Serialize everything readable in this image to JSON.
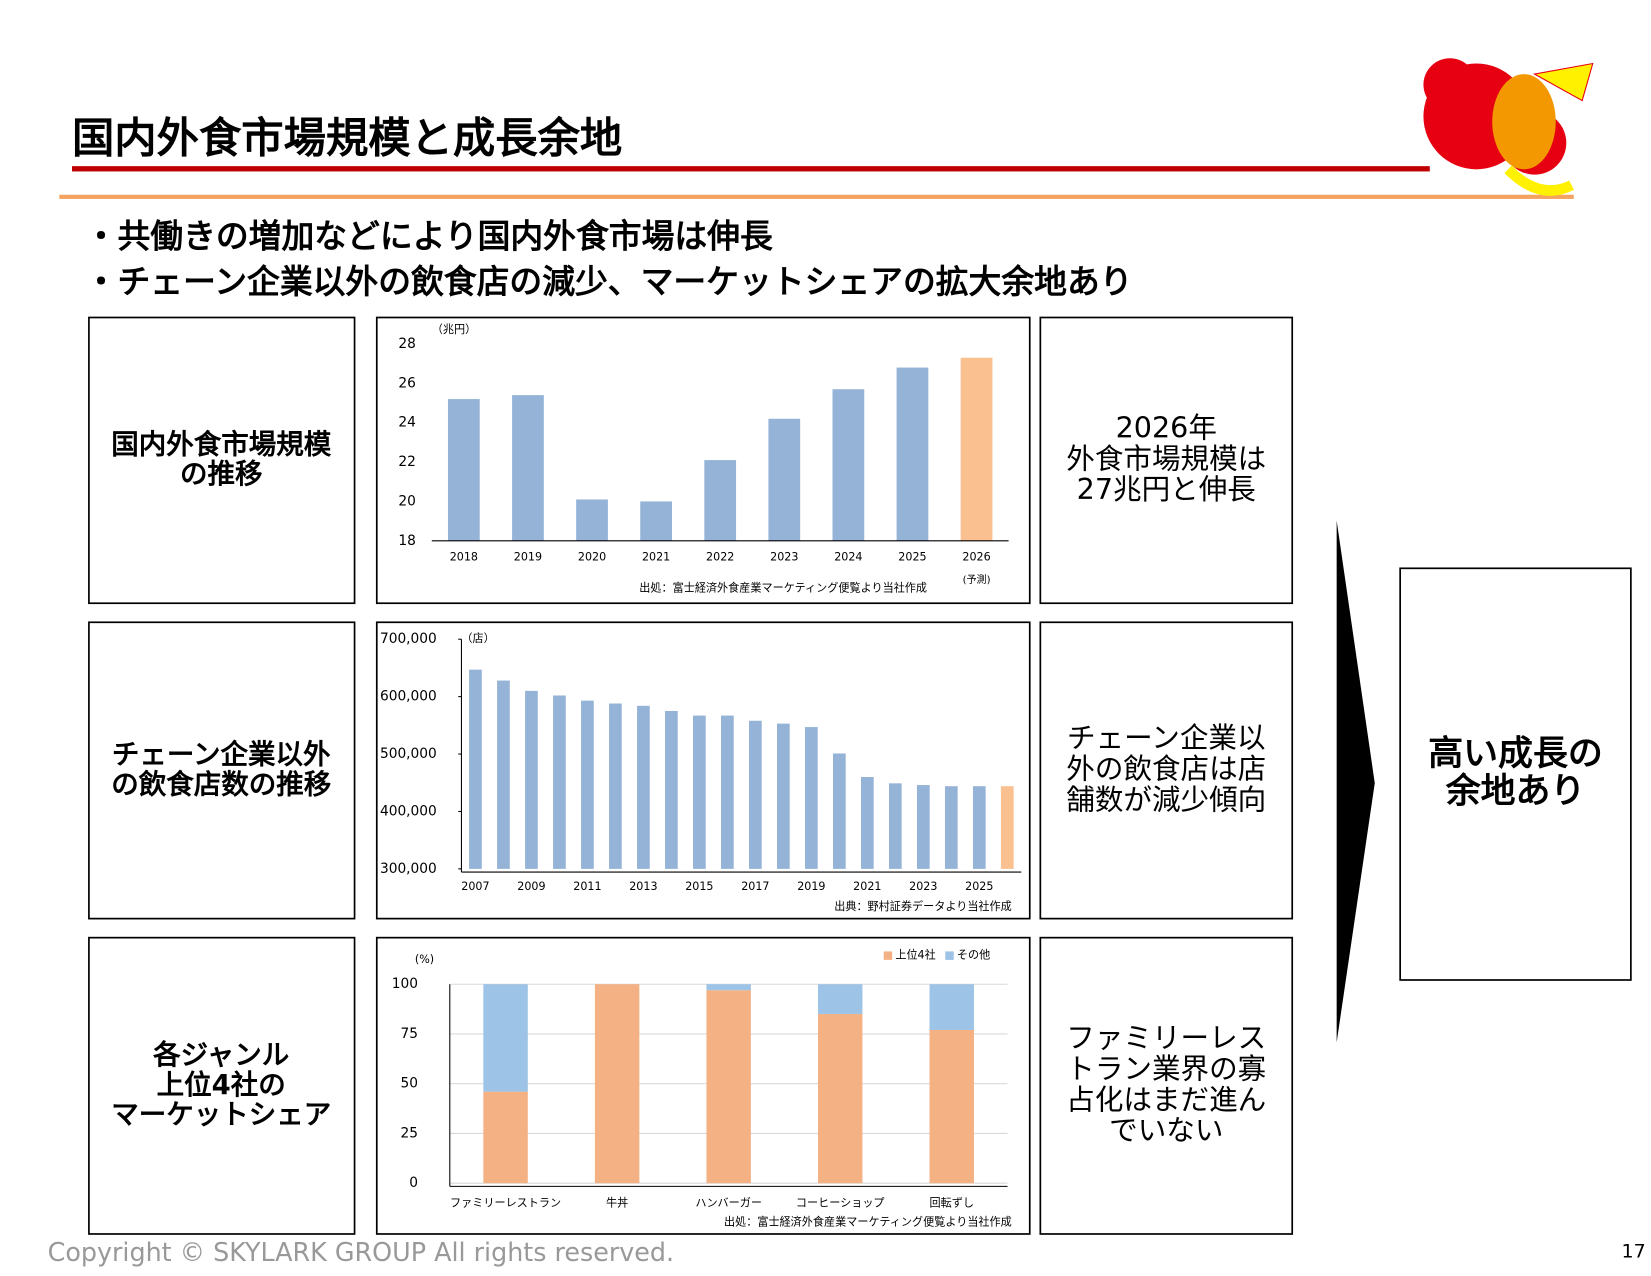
{
  "title": "国内外食市場規模と成長余地",
  "bullets": [
    "・共働きの増加などにより国内外食市場は伸長",
    "・チェーン企業以外の飲食店の減少、マーケットシェアの拡大余地あり"
  ],
  "rows": [
    {
      "label": [
        "国内外食市場規模",
        "の推移"
      ],
      "note": [
        "2026年",
        "外食市場規模は",
        "27兆円と伸長"
      ]
    },
    {
      "label": [
        "チェーン企業以外",
        "の飲食店数の推移"
      ],
      "note": [
        "チェーン企業以",
        "外の飲食店は店",
        "舗数が減少傾向"
      ]
    },
    {
      "label": [
        "各ジャンル",
        "上位4社の",
        "マーケットシェア"
      ],
      "note": [
        "ファミリーレス",
        "トラン業界の寡",
        "占化はまだ進ん",
        "でいない"
      ]
    }
  ],
  "chart_data": [
    {
      "type": "bar",
      "unit_label": "（兆円）",
      "categories": [
        "2018",
        "2019",
        "2020",
        "2021",
        "2022",
        "2023",
        "2024",
        "2025",
        "2026"
      ],
      "category_note": "(予測)",
      "values": [
        25.2,
        25.4,
        20.1,
        20.0,
        22.1,
        24.2,
        25.7,
        26.8,
        27.3
      ],
      "colors": [
        "#95b3d7",
        "#95b3d7",
        "#95b3d7",
        "#95b3d7",
        "#95b3d7",
        "#95b3d7",
        "#95b3d7",
        "#95b3d7",
        "#fac090"
      ],
      "ylim": [
        18,
        28
      ],
      "yticks": [
        18,
        20,
        22,
        24,
        26,
        28
      ],
      "grid": false,
      "source": "出処：富士経済外食産業マーケティング便覧より当社作成"
    },
    {
      "type": "bar",
      "unit_label": "（店）",
      "categories": [
        "2007",
        null,
        "2009",
        null,
        "2011",
        null,
        "2013",
        null,
        "2015",
        null,
        "2017",
        null,
        "2019",
        null,
        "2021",
        null,
        "2023",
        null,
        "2025",
        null
      ],
      "values": [
        647000,
        628000,
        610000,
        602000,
        593000,
        588000,
        584000,
        575000,
        567000,
        567000,
        558000,
        553000,
        547000,
        501000,
        460000,
        449000,
        446000,
        444000,
        444000,
        444000
      ],
      "colors": [
        "#95b3d7",
        "#95b3d7",
        "#95b3d7",
        "#95b3d7",
        "#95b3d7",
        "#95b3d7",
        "#95b3d7",
        "#95b3d7",
        "#95b3d7",
        "#95b3d7",
        "#95b3d7",
        "#95b3d7",
        "#95b3d7",
        "#95b3d7",
        "#95b3d7",
        "#95b3d7",
        "#95b3d7",
        "#95b3d7",
        "#95b3d7",
        "#fac090"
      ],
      "ylim": [
        300000,
        700000
      ],
      "yticks": [
        {
          "value": 300000,
          "label": "300,000"
        },
        {
          "value": 400000,
          "label": "400,000"
        },
        {
          "value": 500000,
          "label": "500,000"
        },
        {
          "value": 600000,
          "label": "600,000"
        },
        {
          "value": 700000,
          "label": "700,000"
        }
      ],
      "grid": false,
      "source": "出典：野村証券データより当社作成"
    },
    {
      "type": "bar",
      "stacked": true,
      "unit_label": "(%)",
      "categories": [
        "ファミリーレストラン",
        "牛丼",
        "ハンバーガー",
        "コーヒーショップ",
        "回転ずし"
      ],
      "series": [
        {
          "name": "上位4社",
          "color": "#f4b183",
          "values": [
            46,
            100,
            97,
            85,
            77
          ]
        },
        {
          "name": "その他",
          "color": "#9dc3e6",
          "values": [
            54,
            0,
            3,
            15,
            23
          ]
        }
      ],
      "ylim": [
        0,
        100
      ],
      "yticks": [
        0,
        25,
        50,
        75,
        100
      ],
      "grid": true,
      "source": "出処：富士経済外食産業マーケティング便覧より当社作成"
    }
  ],
  "conclusion": [
    "高い成長の",
    "余地あり"
  ],
  "copyright": "Copyright © SKYLARK GROUP All rights reserved.",
  "page_number": "17"
}
